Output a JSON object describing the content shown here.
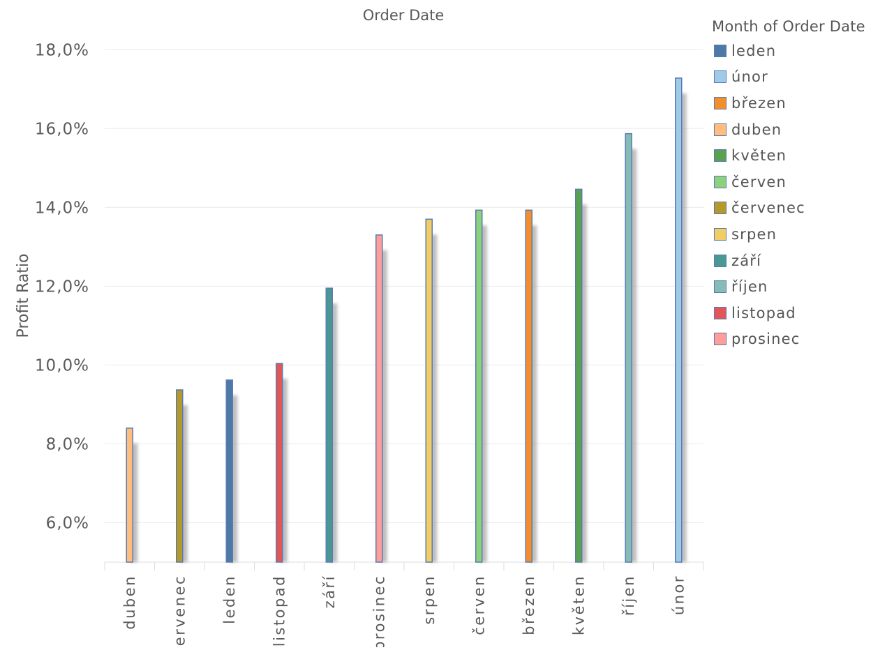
{
  "chart_data": {
    "type": "bar",
    "title": "Order Date",
    "ylabel": "Profit Ratio",
    "xlabel": "",
    "ylim": [
      5,
      18.5
    ],
    "yticks": [
      "6,0%",
      "8,0%",
      "10,0%",
      "12,0%",
      "14,0%",
      "16,0%",
      "18,0%"
    ],
    "ytick_values": [
      6,
      8,
      10,
      12,
      14,
      16,
      18
    ],
    "grid": true,
    "legend_placement": "right",
    "categories": [
      "duben",
      "červenec",
      "leden",
      "listopad",
      "září",
      "prosinec",
      "srpen",
      "červen",
      "březen",
      "květen",
      "říjen",
      "únor"
    ],
    "values": [
      8.4,
      9.37,
      9.62,
      10.04,
      11.95,
      13.3,
      13.7,
      13.93,
      13.93,
      14.46,
      15.87,
      17.28
    ],
    "colors": [
      "#ffbe7d",
      "#b6992d",
      "#4e79a7",
      "#e15759",
      "#499894",
      "#ff9d9a",
      "#f1ce63",
      "#8cd17d",
      "#f28e2b",
      "#59a14f",
      "#86bcb6",
      "#a0cbe8"
    ],
    "legend": {
      "title": "Month of Order Date",
      "items": [
        {
          "label": "leden",
          "color": "#4e79a7"
        },
        {
          "label": "únor",
          "color": "#a0cbe8"
        },
        {
          "label": "březen",
          "color": "#f28e2b"
        },
        {
          "label": "duben",
          "color": "#ffbe7d"
        },
        {
          "label": "květen",
          "color": "#59a14f"
        },
        {
          "label": "červen",
          "color": "#8cd17d"
        },
        {
          "label": "červenec",
          "color": "#b6992d"
        },
        {
          "label": "srpen",
          "color": "#f1ce63"
        },
        {
          "label": "září",
          "color": "#499894"
        },
        {
          "label": "říjen",
          "color": "#86bcb6"
        },
        {
          "label": "listopad",
          "color": "#e15759"
        },
        {
          "label": "prosinec",
          "color": "#ff9d9a"
        }
      ]
    }
  }
}
